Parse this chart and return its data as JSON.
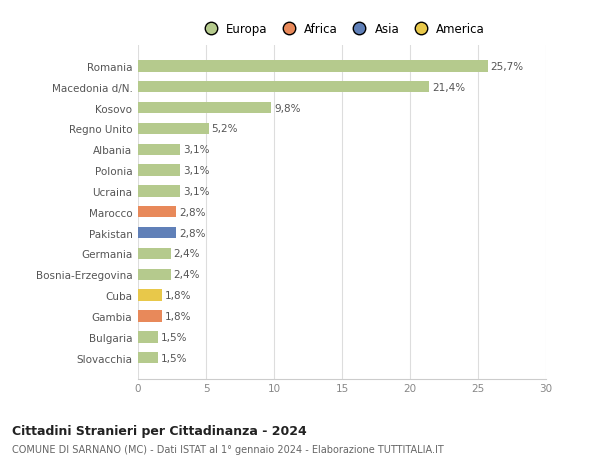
{
  "categories": [
    "Slovacchia",
    "Bulgaria",
    "Gambia",
    "Cuba",
    "Bosnia-Erzegovina",
    "Germania",
    "Pakistan",
    "Marocco",
    "Ucraina",
    "Polonia",
    "Albania",
    "Regno Unito",
    "Kosovo",
    "Macedonia d/N.",
    "Romania"
  ],
  "values": [
    1.5,
    1.5,
    1.8,
    1.8,
    2.4,
    2.4,
    2.8,
    2.8,
    3.1,
    3.1,
    3.1,
    5.2,
    9.8,
    21.4,
    25.7
  ],
  "labels": [
    "1,5%",
    "1,5%",
    "1,8%",
    "1,8%",
    "2,4%",
    "2,4%",
    "2,8%",
    "2,8%",
    "3,1%",
    "3,1%",
    "3,1%",
    "5,2%",
    "9,8%",
    "21,4%",
    "25,7%"
  ],
  "colors": [
    "#b5ca8d",
    "#b5ca8d",
    "#e8895a",
    "#e8c84a",
    "#b5ca8d",
    "#b5ca8d",
    "#6080b8",
    "#e8895a",
    "#b5ca8d",
    "#b5ca8d",
    "#b5ca8d",
    "#b5ca8d",
    "#b5ca8d",
    "#b5ca8d",
    "#b5ca8d"
  ],
  "legend_labels": [
    "Europa",
    "Africa",
    "Asia",
    "America"
  ],
  "legend_colors": [
    "#b5ca8d",
    "#e8895a",
    "#6080b8",
    "#e8c84a"
  ],
  "xlim": [
    0,
    30
  ],
  "xticks": [
    0,
    5,
    10,
    15,
    20,
    25,
    30
  ],
  "title": "Cittadini Stranieri per Cittadinanza - 2024",
  "subtitle": "COMUNE DI SARNANO (MC) - Dati ISTAT al 1° gennaio 2024 - Elaborazione TUTTITALIA.IT",
  "bg_color": "#ffffff",
  "bar_height": 0.55,
  "label_fontsize": 7.5,
  "tick_fontsize": 7.5,
  "ytick_fontsize": 7.5
}
